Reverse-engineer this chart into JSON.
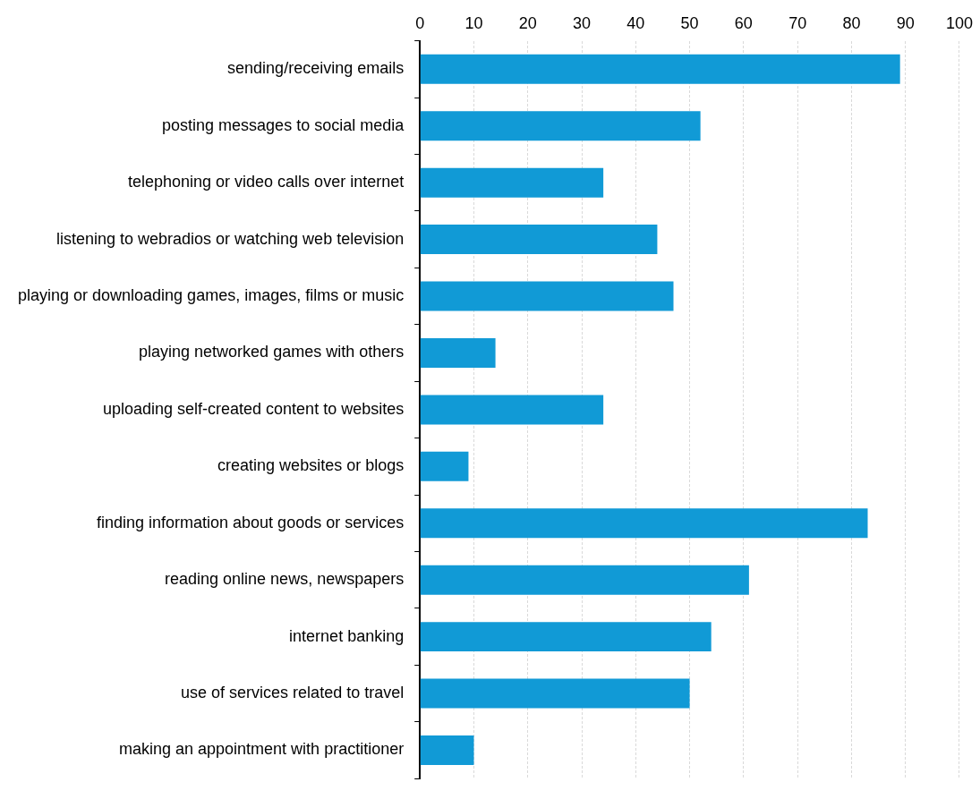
{
  "chart_data": {
    "type": "bar",
    "orientation": "horizontal",
    "categories": [
      "sending/receiving emails",
      "posting messages to social media",
      "telephoning or video calls over internet",
      "listening to webradios or watching web television",
      "playing or downloading games, images, films or music",
      "playing networked games with others",
      "uploading self-created content to websites",
      "creating websites or blogs",
      "finding information about goods or services",
      "reading online news, newspapers",
      "internet banking",
      "use of services related to travel",
      "making an appointment with practitioner"
    ],
    "values": [
      89,
      52,
      34,
      44,
      47,
      14,
      34,
      9,
      83,
      61,
      54,
      50,
      10
    ],
    "color": "#119ad6",
    "xlim": [
      0,
      100
    ],
    "xticks": [
      0,
      10,
      20,
      30,
      40,
      50,
      60,
      70,
      80,
      90,
      100
    ],
    "grid": "x",
    "legend": false
  }
}
